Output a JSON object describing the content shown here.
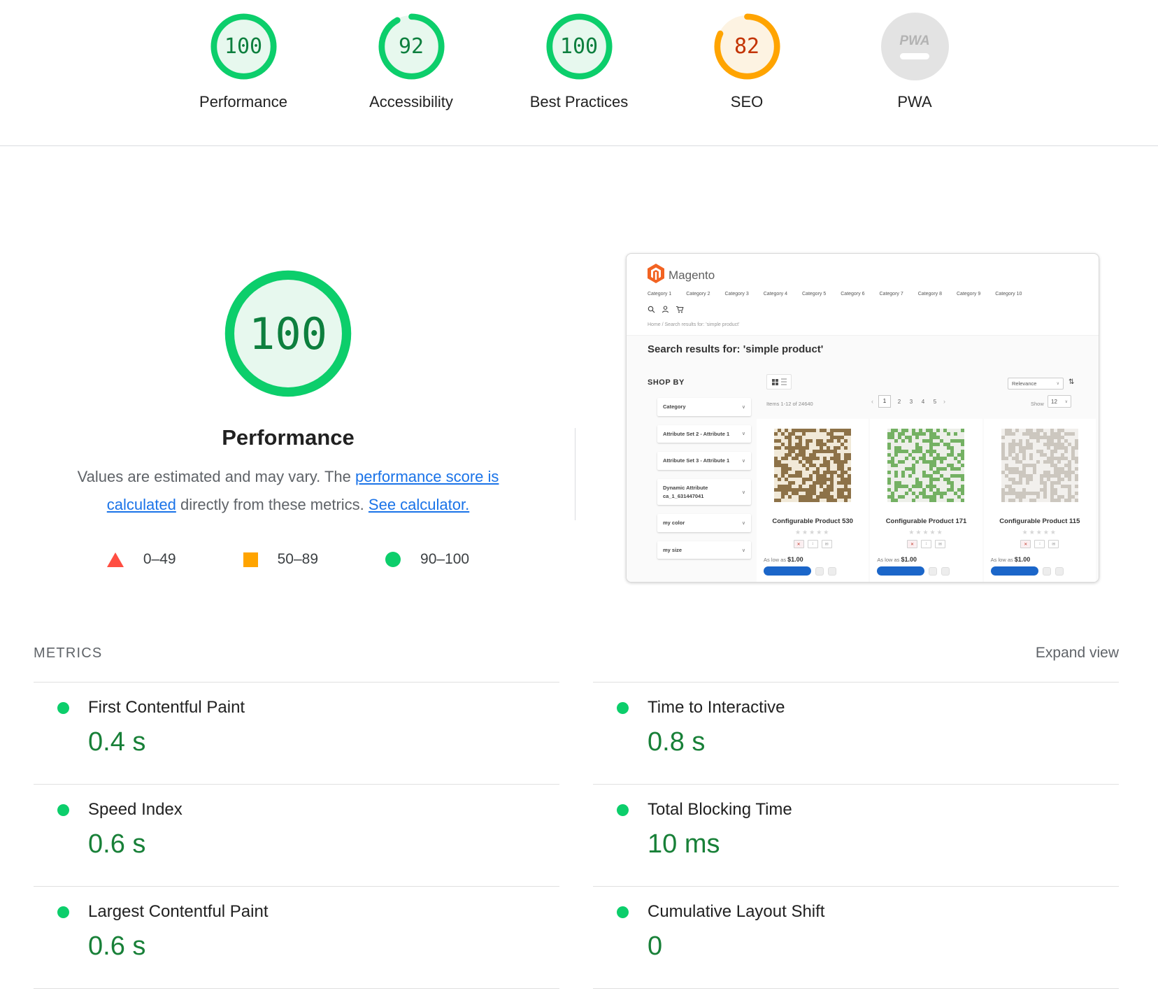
{
  "colors": {
    "pass": "#0cce6b",
    "average": "#ffa400",
    "fail": "#ff4e42",
    "metric_value_green": "#188038",
    "link_blue": "#1a73e8"
  },
  "header_gauges": {
    "items": [
      {
        "label": "Performance",
        "score": "100",
        "value": 100,
        "state": "pass"
      },
      {
        "label": "Accessibility",
        "score": "92",
        "value": 92,
        "state": "pass"
      },
      {
        "label": "Best Practices",
        "score": "100",
        "value": 100,
        "state": "pass"
      },
      {
        "label": "SEO",
        "score": "82",
        "value": 82,
        "state": "average"
      },
      {
        "label": "PWA",
        "badge": "PWA",
        "state": "not-applicable"
      }
    ]
  },
  "main": {
    "score": "100",
    "value": 100,
    "title": "Performance",
    "desc": {
      "t1": "Values are estimated and may vary. The ",
      "l1": "performance score is calculated",
      "t2": " directly from these metrics. ",
      "l2": "See calculator."
    },
    "legend": [
      {
        "range": "0–49"
      },
      {
        "range": "50–89"
      },
      {
        "range": "90–100"
      }
    ]
  },
  "metrics": {
    "title": "METRICS",
    "expand": "Expand view",
    "left": [
      {
        "name": "First Contentful Paint",
        "value": "0.4 s"
      },
      {
        "name": "Speed Index",
        "value": "0.6 s"
      },
      {
        "name": "Largest Contentful Paint",
        "value": "0.6 s"
      }
    ],
    "right": [
      {
        "name": "Time to Interactive",
        "value": "0.8 s"
      },
      {
        "name": "Total Blocking Time",
        "value": "10 ms"
      },
      {
        "name": "Cumulative Layout Shift",
        "value": "0"
      }
    ]
  },
  "screenshot": {
    "brand": "Magento",
    "nav": [
      "Category 1",
      "Category 2",
      "Category 3",
      "Category 4",
      "Category 5",
      "Category 6",
      "Category 7",
      "Category 8",
      "Category 9",
      "Category 10"
    ],
    "breadcrumb": "Home / Search results for: 'simple product'",
    "heading": "Search results for: 'simple product'",
    "shop_by": "SHOP BY",
    "filters": [
      "Category",
      "Attribute Set 2 - Attribute 1",
      "Attribute Set 3 - Attribute 1",
      "Dynamic Attribute ca_1_631447041",
      "my color",
      "my size"
    ],
    "toolbar": {
      "sort": "Relevance",
      "items": "Items 1-12 of 24640",
      "pages": [
        "1",
        "2",
        "3",
        "4",
        "5"
      ],
      "prev": "‹",
      "next": "›",
      "show_label": "Show",
      "show_value": "12"
    },
    "products": [
      {
        "title": "Configurable Product 530",
        "price_prefix": "As low as",
        "price": "$1.00",
        "fg": "#8d7248",
        "bg": "#f1e9d8",
        "density": 0.52,
        "seed": 5
      },
      {
        "title": "Configurable Product 171",
        "price_prefix": "As low as",
        "price": "$1.00",
        "fg": "#74b163",
        "bg": "#edefe9",
        "density": 0.5,
        "seed": 9
      },
      {
        "title": "Configurable Product 115",
        "price_prefix": "As low as",
        "price": "$1.00",
        "fg": "#ccc7bf",
        "bg": "#f2f0ed",
        "density": 0.48,
        "seed": 13
      }
    ]
  }
}
